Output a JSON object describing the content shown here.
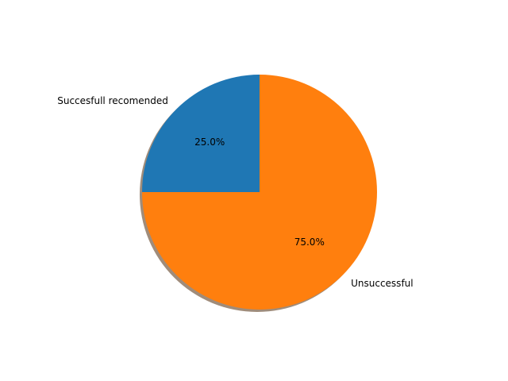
{
  "chart_data": {
    "type": "pie",
    "slices": [
      {
        "label": "Succesfull recomended",
        "value": 25.0,
        "pct_label": "25.0%",
        "color": "#1f77b4"
      },
      {
        "label": "Unsuccessful",
        "value": 75.0,
        "pct_label": "75.0%",
        "color": "#ff7f0e"
      }
    ],
    "start_angle_deg": 90,
    "direction": "counterclockwise",
    "shadow": true,
    "shadow_color": "#a08c7a"
  }
}
